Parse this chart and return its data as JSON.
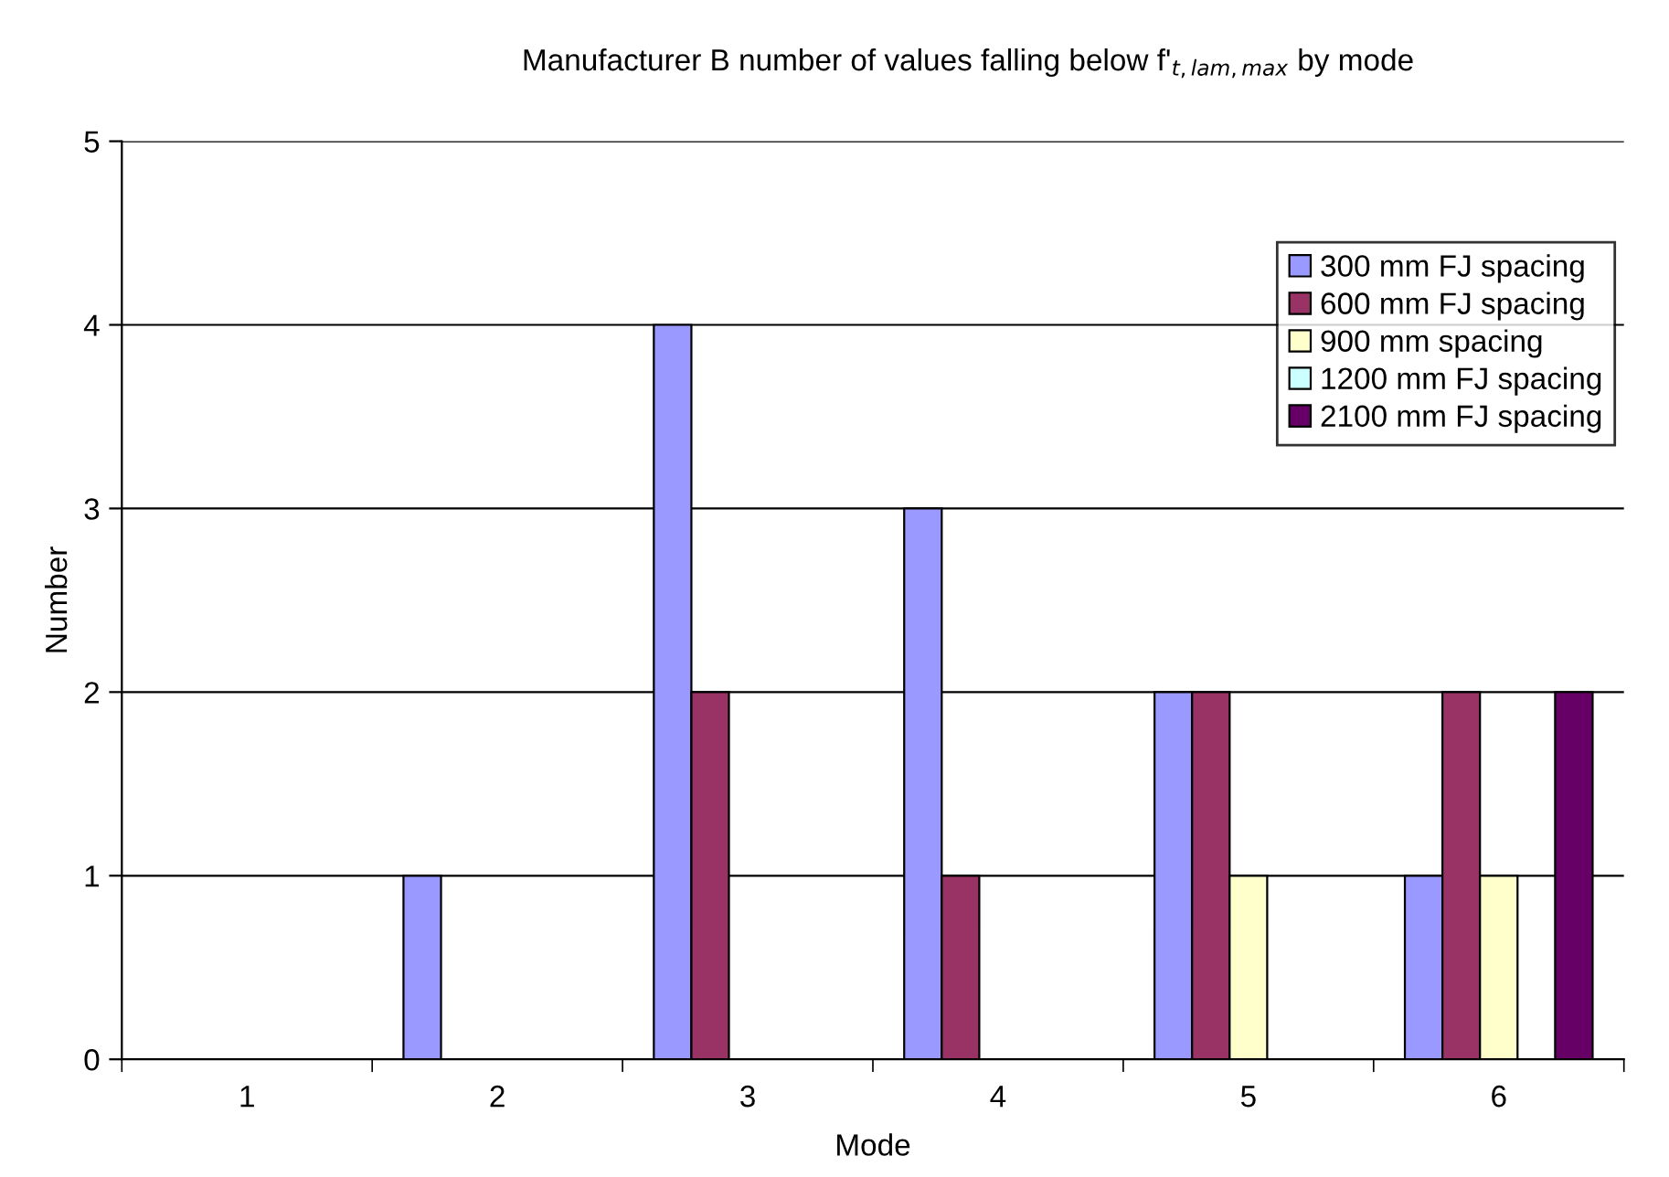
{
  "chart_data": {
    "type": "bar",
    "title": "Manufacturer B number of values falling below f'$_{t,lam,max}$ by mode",
    "xlabel": "Mode",
    "ylabel": "Number",
    "categories": [
      "1",
      "2",
      "3",
      "4",
      "5",
      "6"
    ],
    "series": [
      {
        "name": "300 mm FJ spacing",
        "color": "#9999ff",
        "values": [
          0,
          1,
          4,
          3,
          2,
          1
        ]
      },
      {
        "name": "600 mm FJ spacing",
        "color": "#993366",
        "values": [
          0,
          0,
          2,
          1,
          2,
          2
        ]
      },
      {
        "name": "900 mm spacing",
        "color": "#ffffcc",
        "values": [
          0,
          0,
          0,
          0,
          1,
          1
        ]
      },
      {
        "name": "1200 mm FJ spacing",
        "color": "#ccffff",
        "values": [
          0,
          0,
          0,
          0,
          0,
          0
        ]
      },
      {
        "name": "2100 mm FJ spacing",
        "color": "#660066",
        "values": [
          0,
          0,
          0,
          0,
          0,
          2
        ]
      }
    ],
    "ylim": [
      0,
      5
    ],
    "yticks": [
      0,
      1,
      2,
      3,
      4,
      5
    ],
    "grid": "y",
    "legend": "top right"
  }
}
